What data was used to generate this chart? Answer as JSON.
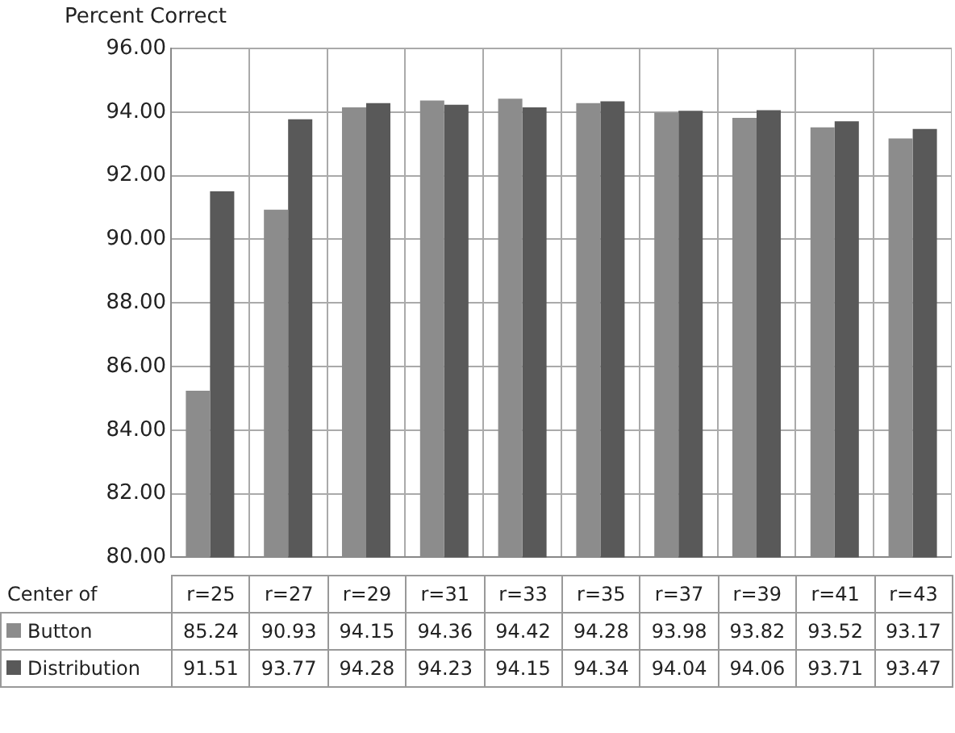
{
  "chart_data": {
    "type": "bar",
    "ylabel": "Percent Correct",
    "xlabel": "Center of",
    "categories": [
      "r=25",
      "r=27",
      "r=29",
      "r=31",
      "r=33",
      "r=35",
      "r=37",
      "r=39",
      "r=41",
      "r=43"
    ],
    "series": [
      {
        "name": "Button",
        "color": "#8c8c8c",
        "values": [
          85.24,
          90.93,
          94.15,
          94.36,
          94.42,
          94.28,
          93.98,
          93.82,
          93.52,
          93.17
        ]
      },
      {
        "name": "Distribution",
        "color": "#595959",
        "values": [
          91.51,
          93.77,
          94.28,
          94.23,
          94.15,
          94.34,
          94.04,
          94.06,
          93.71,
          93.47
        ]
      }
    ],
    "ylim": [
      80,
      96
    ],
    "yticks": [
      {
        "value": 80,
        "label": "80.00"
      },
      {
        "value": 82,
        "label": "82.00"
      },
      {
        "value": 84,
        "label": "84.00"
      },
      {
        "value": 86,
        "label": "86.00"
      },
      {
        "value": 88,
        "label": "88.00"
      },
      {
        "value": 90,
        "label": "90.00"
      },
      {
        "value": 92,
        "label": "92.00"
      },
      {
        "value": 94,
        "label": "94.00"
      },
      {
        "value": 96,
        "label": "96.00"
      }
    ],
    "grid": true,
    "legend": "bottom",
    "data_labels": true
  }
}
